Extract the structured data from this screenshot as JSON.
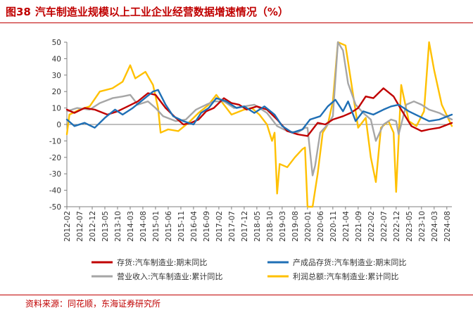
{
  "header": {
    "figure_no": "图38",
    "title": "汽车制造业规模以上工业企业经营数据增速情况（%）"
  },
  "footer": {
    "source": "资料来源：同花顺，东海证券研究所"
  },
  "colors": {
    "inventory": "#c00000",
    "finished_goods": "#1f6fb5",
    "revenue": "#a6a6a6",
    "profit": "#ffc000",
    "brand_red": "#c00000"
  },
  "chart_data": {
    "type": "line",
    "title": "汽车制造业规模以上工业企业经营数据增速情况（%）",
    "ylim": [
      -50,
      50
    ],
    "yticks": [
      -50,
      -40,
      -30,
      -20,
      -10,
      0,
      10,
      20,
      30,
      40,
      50
    ],
    "x_range": [
      "2012-02",
      "2024-10"
    ],
    "xtick_labels": [
      "2012-02",
      "2012-07",
      "2012-12",
      "2013-05",
      "2013-10",
      "2014-03",
      "2014-08",
      "2015-01",
      "2015-06",
      "2015-11",
      "2016-04",
      "2016-09",
      "2017-02",
      "2017-07",
      "2017-12",
      "2018-05",
      "2018-10",
      "2019-03",
      "2019-08",
      "2020-01",
      "2020-06",
      "2020-11",
      "2021-04",
      "2021-09",
      "2022-02",
      "2022-07",
      "2022-12",
      "2023-05",
      "2023-10",
      "2024-03",
      "2024-08"
    ],
    "legend_position": "bottom",
    "series": [
      {
        "name": "存货:汽车制造业:期末同比",
        "color_key": "inventory",
        "points": [
          [
            "2012-02",
            9
          ],
          [
            "2012-05",
            7
          ],
          [
            "2012-09",
            10
          ],
          [
            "2013-01",
            9
          ],
          [
            "2013-06",
            6
          ],
          [
            "2013-10",
            8
          ],
          [
            "2014-02",
            11
          ],
          [
            "2014-06",
            14
          ],
          [
            "2014-10",
            19
          ],
          [
            "2015-01",
            18
          ],
          [
            "2015-05",
            10
          ],
          [
            "2015-09",
            4
          ],
          [
            "2015-12",
            0
          ],
          [
            "2016-03",
            1
          ],
          [
            "2016-06",
            3
          ],
          [
            "2016-09",
            8
          ],
          [
            "2016-12",
            10
          ],
          [
            "2017-04",
            16
          ],
          [
            "2017-07",
            13
          ],
          [
            "2017-10",
            12
          ],
          [
            "2018-01",
            9
          ],
          [
            "2018-05",
            11
          ],
          [
            "2018-09",
            9
          ],
          [
            "2019-01",
            3
          ],
          [
            "2019-05",
            -4
          ],
          [
            "2019-09",
            -6
          ],
          [
            "2020-01",
            -7
          ],
          [
            "2020-03",
            -3
          ],
          [
            "2020-05",
            1
          ],
          [
            "2020-08",
            0
          ],
          [
            "2020-11",
            3
          ],
          [
            "2021-03",
            5
          ],
          [
            "2021-06",
            7
          ],
          [
            "2021-09",
            10
          ],
          [
            "2021-12",
            17
          ],
          [
            "2022-03",
            16
          ],
          [
            "2022-07",
            22
          ],
          [
            "2022-11",
            17
          ],
          [
            "2023-02",
            9
          ],
          [
            "2023-06",
            -1
          ],
          [
            "2023-10",
            -4
          ],
          [
            "2024-01",
            -3
          ],
          [
            "2024-05",
            -2
          ],
          [
            "2024-10",
            1
          ]
        ]
      },
      {
        "name": "产成品存货:汽车制造业:期末同比",
        "color_key": "finished_goods",
        "points": [
          [
            "2012-02",
            3
          ],
          [
            "2012-05",
            -1
          ],
          [
            "2012-09",
            1
          ],
          [
            "2013-01",
            -2
          ],
          [
            "2013-05",
            4
          ],
          [
            "2013-09",
            9
          ],
          [
            "2013-12",
            6
          ],
          [
            "2014-04",
            10
          ],
          [
            "2014-08",
            15
          ],
          [
            "2014-12",
            20
          ],
          [
            "2015-02",
            21
          ],
          [
            "2015-05",
            12
          ],
          [
            "2015-08",
            5
          ],
          [
            "2015-12",
            2
          ],
          [
            "2016-04",
            0
          ],
          [
            "2016-07",
            7
          ],
          [
            "2016-10",
            10
          ],
          [
            "2017-01",
            16
          ],
          [
            "2017-05",
            14
          ],
          [
            "2017-09",
            10
          ],
          [
            "2017-12",
            11
          ],
          [
            "2018-04",
            7
          ],
          [
            "2018-08",
            11
          ],
          [
            "2018-12",
            6
          ],
          [
            "2019-03",
            -1
          ],
          [
            "2019-07",
            -5
          ],
          [
            "2019-11",
            -3
          ],
          [
            "2020-02",
            3
          ],
          [
            "2020-06",
            5
          ],
          [
            "2020-09",
            11
          ],
          [
            "2020-12",
            15
          ],
          [
            "2021-03",
            8
          ],
          [
            "2021-05",
            14
          ],
          [
            "2021-08",
            2
          ],
          [
            "2021-11",
            8
          ],
          [
            "2022-03",
            6
          ],
          [
            "2022-07",
            9
          ],
          [
            "2022-10",
            11
          ],
          [
            "2023-01",
            12
          ],
          [
            "2023-05",
            8
          ],
          [
            "2023-09",
            5
          ],
          [
            "2024-01",
            2
          ],
          [
            "2024-05",
            3
          ],
          [
            "2024-10",
            6
          ]
        ]
      },
      {
        "name": "营业收入:汽车制造业:累计同比",
        "color_key": "revenue",
        "points": [
          [
            "2012-02",
            8
          ],
          [
            "2012-06",
            10
          ],
          [
            "2012-11",
            9
          ],
          [
            "2013-03",
            13
          ],
          [
            "2013-08",
            16
          ],
          [
            "2013-12",
            17
          ],
          [
            "2014-03",
            18
          ],
          [
            "2014-06",
            12
          ],
          [
            "2014-10",
            14
          ],
          [
            "2015-01",
            10
          ],
          [
            "2015-04",
            5
          ],
          [
            "2015-09",
            2
          ],
          [
            "2016-01",
            3
          ],
          [
            "2016-05",
            9
          ],
          [
            "2016-09",
            12
          ],
          [
            "2016-12",
            14
          ],
          [
            "2017-04",
            14
          ],
          [
            "2017-08",
            10
          ],
          [
            "2017-12",
            11
          ],
          [
            "2018-04",
            12
          ],
          [
            "2018-09",
            7
          ],
          [
            "2019-01",
            -1
          ],
          [
            "2019-05",
            -4
          ],
          [
            "2019-09",
            -5
          ],
          [
            "2019-12",
            -2
          ],
          [
            "2020-01",
            -2
          ],
          [
            "2020-03",
            -31
          ],
          [
            "2020-04",
            -25
          ],
          [
            "2020-06",
            -5
          ],
          [
            "2020-09",
            0
          ],
          [
            "2020-11",
            5
          ],
          [
            "2021-01",
            50
          ],
          [
            "2021-03",
            45
          ],
          [
            "2021-05",
            25
          ],
          [
            "2021-08",
            12
          ],
          [
            "2021-11",
            7
          ],
          [
            "2022-02",
            3
          ],
          [
            "2022-04",
            -10
          ],
          [
            "2022-07",
            0
          ],
          [
            "2022-10",
            3
          ],
          [
            "2022-12",
            2
          ],
          [
            "2023-01",
            -6
          ],
          [
            "2023-04",
            12
          ],
          [
            "2023-07",
            14
          ],
          [
            "2023-10",
            12
          ],
          [
            "2024-01",
            9
          ],
          [
            "2024-05",
            7
          ],
          [
            "2024-10",
            3
          ]
        ]
      },
      {
        "name": "利润总额:汽车制造业:累计同比",
        "color_key": "profit",
        "points": [
          [
            "2012-02",
            -6
          ],
          [
            "2012-03",
            6
          ],
          [
            "2012-07",
            9
          ],
          [
            "2012-11",
            11
          ],
          [
            "2013-03",
            20
          ],
          [
            "2013-08",
            22
          ],
          [
            "2013-12",
            26
          ],
          [
            "2014-03",
            36
          ],
          [
            "2014-05",
            28
          ],
          [
            "2014-09",
            32
          ],
          [
            "2014-12",
            24
          ],
          [
            "2015-02",
            10
          ],
          [
            "2015-03",
            -5
          ],
          [
            "2015-06",
            -3
          ],
          [
            "2015-10",
            -4
          ],
          [
            "2016-02",
            1
          ],
          [
            "2016-06",
            7
          ],
          [
            "2016-10",
            12
          ],
          [
            "2017-01",
            18
          ],
          [
            "2017-03",
            14
          ],
          [
            "2017-07",
            6
          ],
          [
            "2017-12",
            9
          ],
          [
            "2018-03",
            10
          ],
          [
            "2018-06",
            6
          ],
          [
            "2018-09",
            0
          ],
          [
            "2018-11",
            -10
          ],
          [
            "2018-12",
            -5
          ],
          [
            "2019-01",
            -42
          ],
          [
            "2019-02",
            -24
          ],
          [
            "2019-05",
            -26
          ],
          [
            "2019-08",
            -20
          ],
          [
            "2019-11",
            -15
          ],
          [
            "2019-12",
            -14
          ],
          [
            "2020-01",
            -50
          ],
          [
            "2020-03",
            -50
          ],
          [
            "2020-05",
            -30
          ],
          [
            "2020-07",
            -5
          ],
          [
            "2020-09",
            0
          ],
          [
            "2020-11",
            14
          ],
          [
            "2021-01",
            50
          ],
          [
            "2021-04",
            48
          ],
          [
            "2021-06",
            28
          ],
          [
            "2021-09",
            -2
          ],
          [
            "2021-12",
            4
          ],
          [
            "2022-02",
            -20
          ],
          [
            "2022-04",
            -35
          ],
          [
            "2022-06",
            -2
          ],
          [
            "2022-09",
            2
          ],
          [
            "2022-11",
            -5
          ],
          [
            "2022-12",
            -41
          ],
          [
            "2023-02",
            24
          ],
          [
            "2023-05",
            2
          ],
          [
            "2023-08",
            -1
          ],
          [
            "2023-11",
            8
          ],
          [
            "2024-01",
            50
          ],
          [
            "2024-03",
            33
          ],
          [
            "2024-06",
            12
          ],
          [
            "2024-10",
            -1
          ]
        ]
      }
    ]
  }
}
